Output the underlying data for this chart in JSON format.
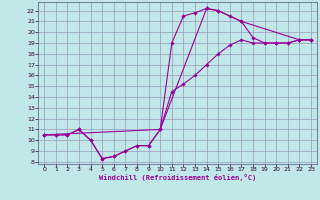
{
  "bg_color": "#c0e8e8",
  "grid_color": "#9999bb",
  "line_color": "#990099",
  "xlabel": "Windchill (Refroidissement éolien,°C)",
  "xlim": [
    -0.5,
    23.5
  ],
  "ylim": [
    7.8,
    22.8
  ],
  "xticks": [
    0,
    1,
    2,
    3,
    4,
    5,
    6,
    7,
    8,
    9,
    10,
    11,
    12,
    13,
    14,
    15,
    16,
    17,
    18,
    19,
    20,
    21,
    22,
    23
  ],
  "yticks": [
    8,
    9,
    10,
    11,
    12,
    13,
    14,
    15,
    16,
    17,
    18,
    19,
    20,
    21,
    22
  ],
  "curve1_x": [
    0,
    1,
    2,
    3,
    4,
    5,
    6,
    7,
    8,
    9,
    10,
    11,
    12,
    13,
    14,
    15,
    16,
    17,
    18,
    19,
    20,
    21,
    22,
    23
  ],
  "curve1_y": [
    10.5,
    10.5,
    10.5,
    11.0,
    10.0,
    8.3,
    8.5,
    9.0,
    9.5,
    9.5,
    11.0,
    19.0,
    21.5,
    21.8,
    22.2,
    22.0,
    21.5,
    21.0,
    19.5,
    19.0,
    19.0,
    19.0,
    19.3,
    19.3
  ],
  "curve2_x": [
    0,
    1,
    2,
    3,
    4,
    5,
    6,
    7,
    8,
    9,
    10,
    11,
    12,
    13,
    14,
    15,
    16,
    17,
    18,
    19,
    20,
    21,
    22,
    23
  ],
  "curve2_y": [
    10.5,
    10.5,
    10.5,
    11.0,
    10.0,
    8.3,
    8.5,
    9.0,
    9.5,
    9.5,
    11.0,
    14.5,
    15.2,
    16.0,
    17.0,
    18.0,
    18.8,
    19.3,
    19.0,
    19.0,
    19.0,
    19.0,
    19.3,
    19.3
  ],
  "curve3_x": [
    0,
    10,
    14,
    15,
    17,
    22,
    23
  ],
  "curve3_y": [
    10.5,
    11.0,
    22.2,
    22.0,
    21.0,
    19.3,
    19.3
  ]
}
